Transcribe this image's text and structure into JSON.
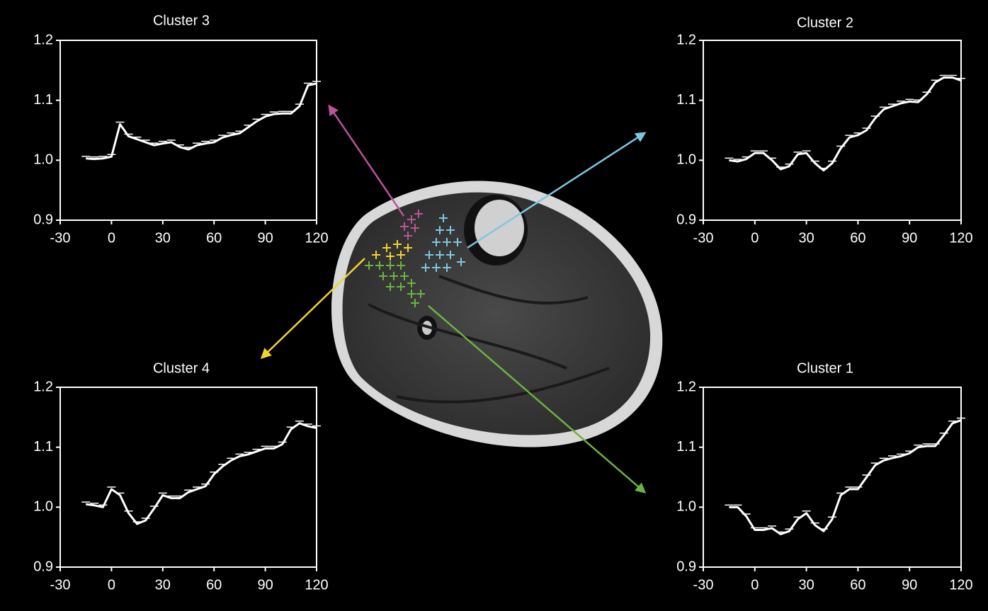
{
  "chart_data": [
    {
      "type": "line",
      "title": "Cluster 3",
      "color": "#ffffff",
      "x": [
        -15,
        -10,
        -5,
        0,
        5,
        10,
        15,
        20,
        25,
        30,
        35,
        40,
        45,
        50,
        55,
        60,
        65,
        70,
        75,
        80,
        85,
        90,
        95,
        100,
        105,
        110,
        115,
        120
      ],
      "values": [
        1.003,
        1.002,
        1.003,
        1.006,
        1.06,
        1.04,
        1.035,
        1.03,
        1.025,
        1.028,
        1.03,
        1.022,
        1.018,
        1.025,
        1.028,
        1.03,
        1.038,
        1.042,
        1.045,
        1.055,
        1.065,
        1.073,
        1.077,
        1.078,
        1.078,
        1.09,
        1.125,
        1.128
      ],
      "xlim": [
        -30,
        120
      ],
      "xticks": [
        -30,
        0,
        30,
        60,
        90,
        120
      ],
      "ylim": [
        0.9,
        1.2
      ],
      "yticks": [
        0.9,
        {
          "value": 1,
          "label": "1.0"
        },
        1.1,
        1.2
      ]
    },
    {
      "type": "line",
      "title": "Cluster 2",
      "color": "#ffffff",
      "x": [
        -15,
        -10,
        -5,
        0,
        5,
        10,
        15,
        20,
        25,
        30,
        35,
        40,
        45,
        50,
        55,
        60,
        65,
        70,
        75,
        80,
        85,
        90,
        95,
        100,
        105,
        110,
        115,
        120
      ],
      "values": [
        1.0,
        0.998,
        1.002,
        1.012,
        1.012,
        1.0,
        0.985,
        0.99,
        1.01,
        1.012,
        0.995,
        0.983,
        0.995,
        1.02,
        1.038,
        1.042,
        1.05,
        1.07,
        1.085,
        1.09,
        1.095,
        1.098,
        1.097,
        1.11,
        1.13,
        1.138,
        1.138,
        1.133
      ],
      "xlim": [
        -30,
        120
      ],
      "xticks": [
        -30,
        0,
        30,
        60,
        90,
        120
      ],
      "ylim": [
        0.9,
        1.2
      ],
      "yticks": [
        0.9,
        {
          "value": 1,
          "label": "1.0"
        },
        1.1,
        1.2
      ]
    },
    {
      "type": "line",
      "title": "Cluster 4",
      "color": "#ffffff",
      "x": [
        -15,
        -10,
        -5,
        0,
        5,
        10,
        15,
        20,
        25,
        30,
        35,
        40,
        45,
        50,
        55,
        60,
        65,
        70,
        75,
        80,
        85,
        90,
        95,
        100,
        105,
        110,
        115,
        120
      ],
      "values": [
        1.005,
        1.003,
        1.0,
        1.03,
        1.02,
        0.99,
        0.972,
        0.978,
        0.998,
        1.02,
        1.015,
        1.015,
        1.025,
        1.03,
        1.035,
        1.055,
        1.068,
        1.078,
        1.085,
        1.088,
        1.093,
        1.098,
        1.098,
        1.105,
        1.13,
        1.14,
        1.135,
        1.132
      ],
      "xlim": [
        -30,
        120
      ],
      "xticks": [
        -30,
        0,
        30,
        60,
        90,
        120
      ],
      "ylim": [
        0.9,
        1.2
      ],
      "yticks": [
        0.9,
        {
          "value": 1,
          "label": "1.0"
        },
        1.1,
        1.2
      ]
    },
    {
      "type": "line",
      "title": "Cluster 1",
      "color": "#ffffff",
      "x": [
        -15,
        -10,
        -5,
        0,
        5,
        10,
        15,
        20,
        25,
        30,
        35,
        40,
        45,
        50,
        55,
        60,
        65,
        70,
        75,
        80,
        85,
        90,
        95,
        100,
        105,
        110,
        115,
        120
      ],
      "values": [
        1.0,
        1.0,
        0.985,
        0.962,
        0.962,
        0.965,
        0.955,
        0.96,
        0.98,
        0.99,
        0.97,
        0.96,
        0.98,
        1.02,
        1.03,
        1.03,
        1.05,
        1.07,
        1.078,
        1.082,
        1.085,
        1.09,
        1.1,
        1.102,
        1.102,
        1.12,
        1.14,
        1.145
      ],
      "xlim": [
        -30,
        120
      ],
      "xticks": [
        -30,
        0,
        30,
        60,
        90,
        120
      ],
      "ylim": [
        0.9,
        1.2
      ],
      "yticks": [
        0.9,
        {
          "value": 1,
          "label": "1.0"
        },
        1.1,
        1.2
      ]
    }
  ]
}
